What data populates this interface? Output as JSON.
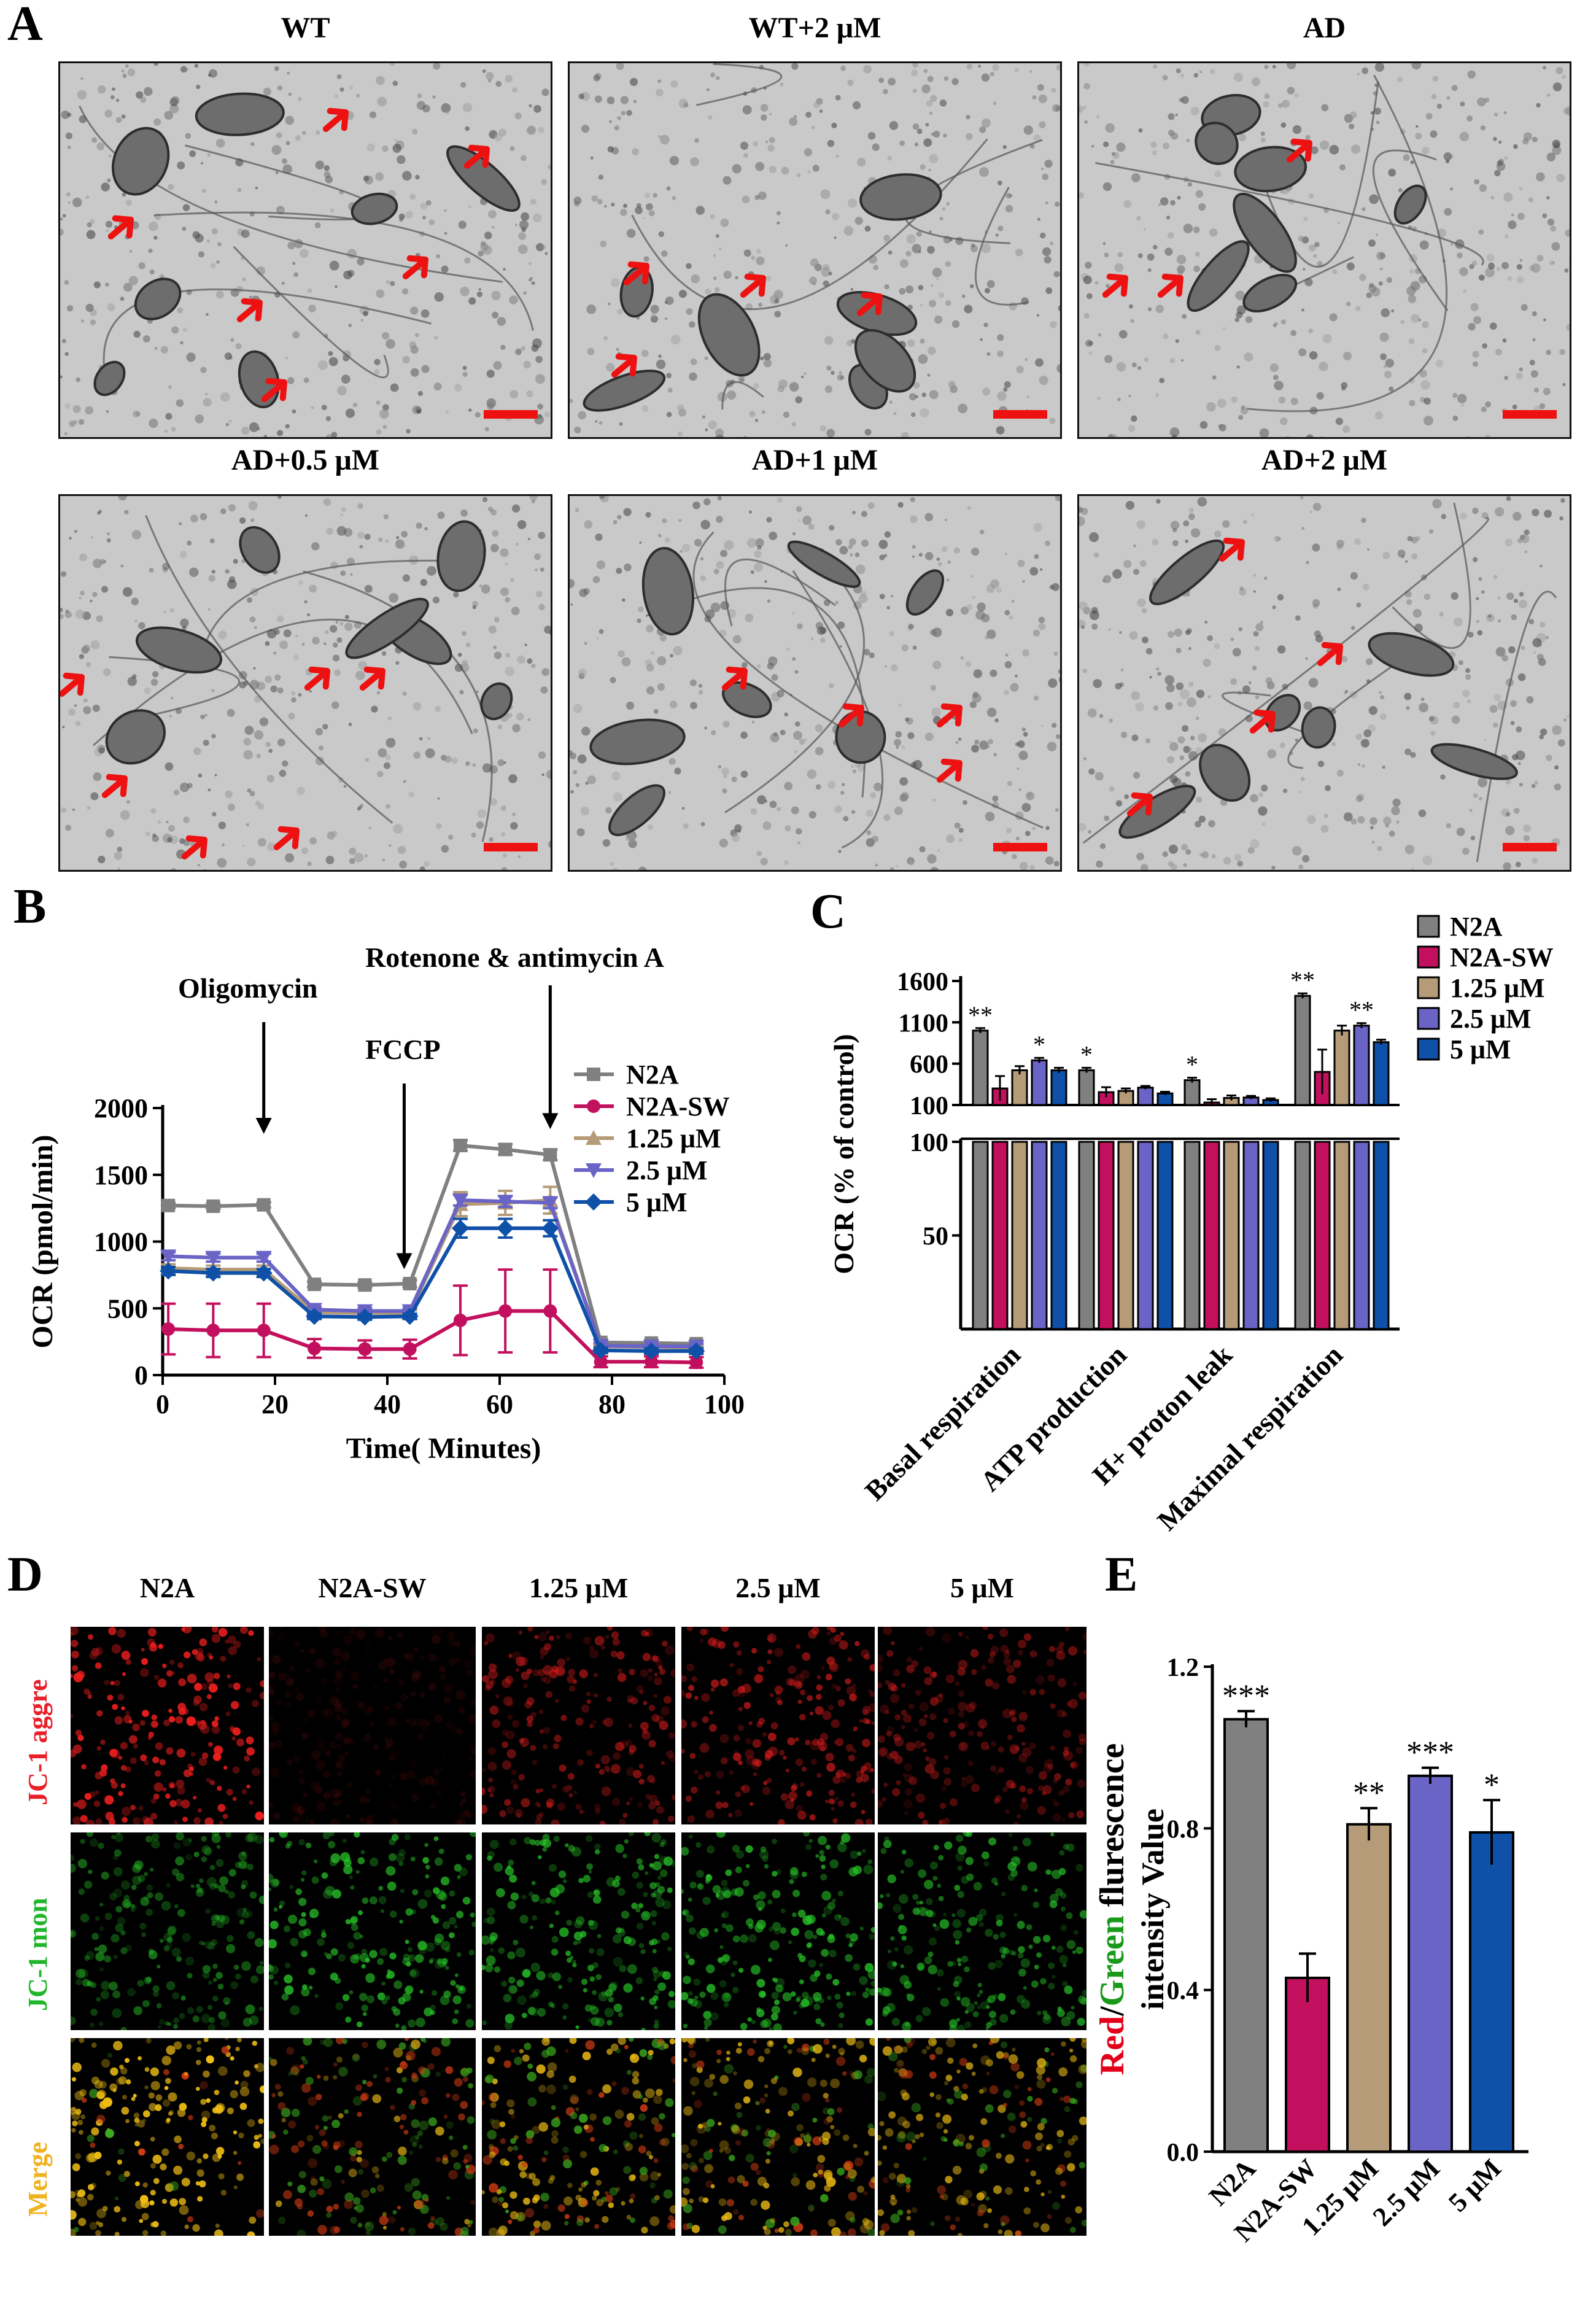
{
  "panel_letters": {
    "a": "A",
    "b": "B",
    "c": "C",
    "d": "D",
    "e": "E"
  },
  "em_labels": [
    "WT",
    "WT+2 μM",
    "AD",
    "AD+0.5 μM",
    "AD+1 μM",
    "AD+2 μM"
  ],
  "confocal": {
    "columns": [
      "N2A",
      "N2A-SW",
      "1.25 μM",
      "2.5 μM",
      "5 μM"
    ],
    "rows": [
      {
        "label": "JC-1 aggre",
        "color": "#e8202a"
      },
      {
        "label": "JC-1 mon",
        "color": "#1fb62a"
      },
      {
        "label": "Merge",
        "color": "#f0b21e"
      }
    ],
    "row_intensity": [
      [
        1.0,
        0.12,
        0.55,
        0.65,
        0.45
      ],
      [
        0.55,
        0.8,
        0.75,
        0.8,
        0.7
      ],
      [
        1.0,
        0.75,
        0.85,
        0.85,
        0.75
      ]
    ]
  },
  "colors": {
    "N2A": "#808080",
    "N2A-SW": "#c3105e",
    "1.25 μM": "#b59b77",
    "2.5 μM": "#6a64c6",
    "5 μM": "#0f51a8",
    "red_label": "#e3001b",
    "green_label": "#1a9a1a",
    "arrow": "#ee1111"
  },
  "chart_data": [
    {
      "id": "B",
      "type": "line",
      "xlabel": "Time( Minutes)",
      "ylabel": "OCR (pmol/min)",
      "xlim": [
        0,
        100
      ],
      "ylim": [
        0,
        2000
      ],
      "xticks": [
        0,
        20,
        40,
        60,
        80,
        100
      ],
      "yticks": [
        0,
        500,
        1000,
        1500,
        2000
      ],
      "x": [
        1,
        9,
        18,
        27,
        36,
        44,
        53,
        61,
        69,
        78,
        87,
        95
      ],
      "series": [
        {
          "name": "N2A",
          "marker": "square",
          "values": [
            1270,
            1265,
            1275,
            680,
            675,
            685,
            1720,
            1690,
            1650,
            245,
            240,
            235
          ],
          "err": [
            20,
            20,
            20,
            20,
            20,
            25,
            40,
            40,
            40,
            20,
            20,
            20
          ]
        },
        {
          "name": "N2A-SW",
          "marker": "circle",
          "values": [
            345,
            335,
            335,
            200,
            195,
            195,
            410,
            480,
            480,
            100,
            100,
            95
          ],
          "err": [
            190,
            200,
            200,
            70,
            65,
            70,
            260,
            310,
            310,
            40,
            40,
            40
          ]
        },
        {
          "name": "1.25 μM",
          "marker": "triangle-up",
          "values": [
            800,
            790,
            790,
            470,
            465,
            465,
            1280,
            1290,
            1310,
            215,
            210,
            205
          ],
          "err": [
            30,
            30,
            30,
            20,
            20,
            20,
            90,
            90,
            100,
            20,
            20,
            20
          ]
        },
        {
          "name": "2.5 μM",
          "marker": "triangle-down",
          "values": [
            890,
            880,
            880,
            490,
            480,
            480,
            1310,
            1300,
            1290,
            220,
            215,
            215
          ],
          "err": [
            30,
            30,
            30,
            20,
            20,
            20,
            40,
            40,
            40,
            20,
            20,
            20
          ]
        },
        {
          "name": "5 μM",
          "marker": "diamond",
          "values": [
            780,
            765,
            765,
            440,
            435,
            440,
            1100,
            1100,
            1100,
            185,
            180,
            180
          ],
          "err": [
            30,
            30,
            30,
            20,
            20,
            20,
            70,
            70,
            60,
            20,
            20,
            20
          ]
        }
      ],
      "annotations": [
        {
          "text": "Oligomycin",
          "x": 18
        },
        {
          "text": "FCCP",
          "x": 43
        },
        {
          "text": "Rotenone & antimycin A",
          "x": 69
        }
      ],
      "legend": "top-right"
    },
    {
      "id": "C",
      "type": "bar",
      "ylabel": "OCR (% of control)",
      "broken_axis": true,
      "lower_yticks": [
        50,
        100
      ],
      "upper_yticks": [
        100,
        600,
        1100,
        1600
      ],
      "categories": [
        "Basal respiration",
        "ATP production",
        "H+ proton leak",
        "Maximal respiration"
      ],
      "series": [
        {
          "name": "N2A",
          "values": [
            1000,
            520,
            400,
            1420
          ],
          "err": [
            30,
            30,
            30,
            30
          ]
        },
        {
          "name": "N2A-SW",
          "values": [
            300,
            255,
            130,
            500
          ],
          "err": [
            150,
            60,
            40,
            270
          ]
        },
        {
          "name": "1.25 μM",
          "values": [
            520,
            270,
            185,
            1000
          ],
          "err": [
            50,
            30,
            30,
            60
          ]
        },
        {
          "name": "2.5 μM",
          "values": [
            640,
            310,
            190,
            1060
          ],
          "err": [
            30,
            20,
            20,
            30
          ]
        },
        {
          "name": "5 μM",
          "values": [
            520,
            240,
            160,
            860
          ],
          "err": [
            30,
            20,
            20,
            30
          ]
        }
      ],
      "significance": [
        {
          "category": 0,
          "series": 0,
          "text": "**"
        },
        {
          "category": 0,
          "series": 3,
          "text": "*"
        },
        {
          "category": 1,
          "series": 0,
          "text": "*"
        },
        {
          "category": 2,
          "series": 0,
          "text": "*"
        },
        {
          "category": 3,
          "series": 0,
          "text": "**"
        },
        {
          "category": 3,
          "series": 3,
          "text": "**"
        }
      ],
      "legend": "right"
    },
    {
      "id": "E",
      "type": "bar",
      "ylabel_parts": [
        "Red",
        "/",
        "Green",
        " flurescence"
      ],
      "ylabel_line2": "intensity Value",
      "ylim": [
        0,
        1.2
      ],
      "yticks": [
        0.0,
        0.4,
        0.8,
        1.2
      ],
      "categories": [
        "N2A",
        "N2A-SW",
        "1.25 μM",
        "2.5 μM",
        "5 μM"
      ],
      "values": [
        1.07,
        0.43,
        0.81,
        0.93,
        0.79
      ],
      "err": [
        0.02,
        0.06,
        0.04,
        0.02,
        0.08
      ],
      "significance": [
        "***",
        "",
        "**",
        "***",
        "*"
      ]
    }
  ]
}
